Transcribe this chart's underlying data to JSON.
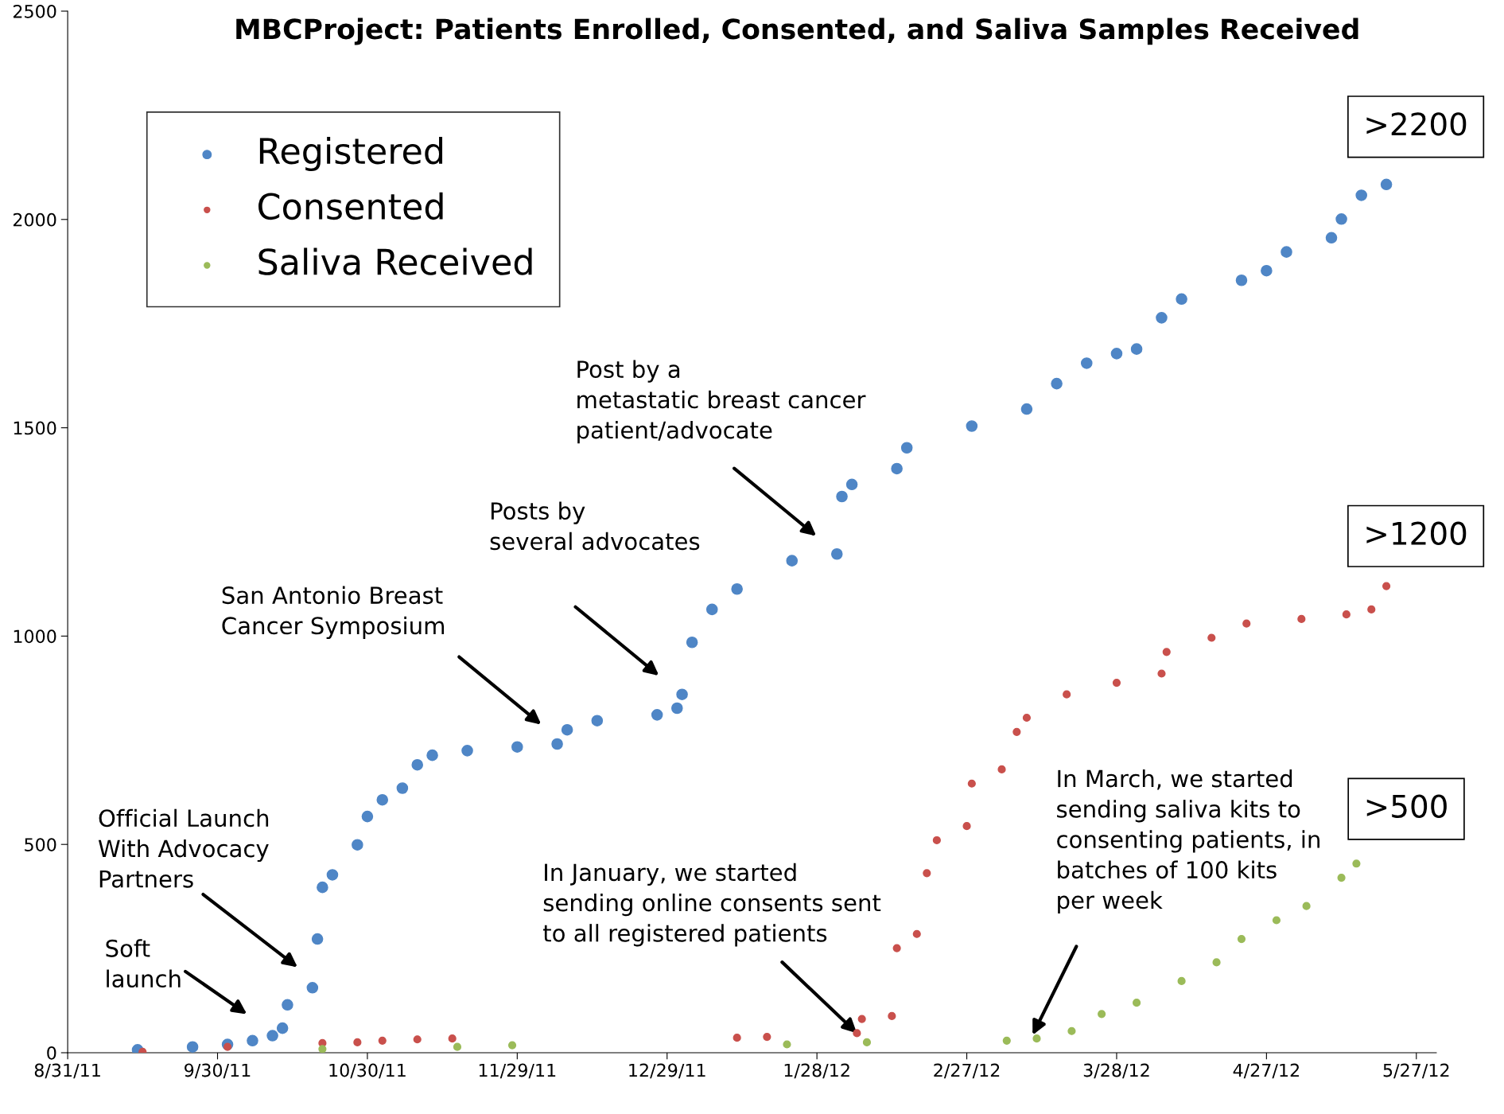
{
  "chart_data": {
    "type": "scatter",
    "title": "MBCProject: Patients Enrolled, Consented, and Saliva Samples Received",
    "xlim": [
      "2011-08-31",
      "2012-05-31"
    ],
    "xticks": [
      {
        "value": "2011-08-31",
        "label": "8/31/11"
      },
      {
        "value": "2011-09-30",
        "label": "9/30/11"
      },
      {
        "value": "2011-10-30",
        "label": "10/30/11"
      },
      {
        "value": "2011-11-29",
        "label": "11/29/11"
      },
      {
        "value": "2011-12-29",
        "label": "12/29/11"
      },
      {
        "value": "2012-01-28",
        "label": "1/28/12"
      },
      {
        "value": "2012-02-27",
        "label": "2/27/12"
      },
      {
        "value": "2012-03-28",
        "label": "3/28/12"
      },
      {
        "value": "2012-04-27",
        "label": "4/27/12"
      },
      {
        "value": "2012-05-27",
        "label": "5/27/12"
      }
    ],
    "ylim": [
      0,
      2500
    ],
    "yticks": [
      0,
      500,
      1000,
      1500,
      2000,
      2500
    ],
    "grid": false,
    "legend": "top left",
    "marker": "circle",
    "series": [
      {
        "name": "Registered",
        "color": "#4f86c6",
        "x": [
          "2011-09-14",
          "2011-09-25",
          "2011-10-02",
          "2011-10-07",
          "2011-10-11",
          "2011-10-13",
          "2011-10-14",
          "2011-10-19",
          "2011-10-20",
          "2011-10-21",
          "2011-10-23",
          "2011-10-28",
          "2011-10-30",
          "2011-11-02",
          "2011-11-06",
          "2011-11-09",
          "2011-11-12",
          "2011-11-19",
          "2011-11-29",
          "2011-12-07",
          "2011-12-09",
          "2011-12-15",
          "2011-12-27",
          "2011-12-31",
          "2012-01-01",
          "2012-01-03",
          "2012-01-07",
          "2012-01-12",
          "2012-01-23",
          "2012-02-01",
          "2012-02-02",
          "2012-02-04",
          "2012-02-13",
          "2012-02-15",
          "2012-02-28",
          "2012-03-10",
          "2012-03-16",
          "2012-03-22",
          "2012-03-28",
          "2012-04-01",
          "2012-04-06",
          "2012-04-10",
          "2012-04-22",
          "2012-04-27",
          "2012-05-01",
          "2012-05-10",
          "2012-05-12",
          "2012-05-16",
          "2012-05-21"
        ],
        "values": [
          7,
          14,
          20,
          29,
          41,
          59,
          115,
          156,
          273,
          397,
          427,
          499,
          567,
          607,
          635,
          691,
          714,
          725,
          734,
          741,
          775,
          797,
          811,
          827,
          860,
          985,
          1064,
          1113,
          1181,
          1197,
          1335,
          1364,
          1402,
          1452,
          1504,
          1545,
          1606,
          1655,
          1678,
          1689,
          1764,
          1809,
          1854,
          1877,
          1922,
          1956,
          2001,
          2058,
          2084
        ]
      },
      {
        "name": "Consented",
        "color": "#c9504c",
        "x": [
          "2011-09-15",
          "2011-10-02",
          "2011-10-21",
          "2011-10-28",
          "2011-11-02",
          "2011-11-09",
          "2011-11-16",
          "2012-01-12",
          "2012-01-18",
          "2012-02-05",
          "2012-02-06",
          "2012-02-12",
          "2012-02-13",
          "2012-02-17",
          "2012-02-19",
          "2012-02-21",
          "2012-02-27",
          "2012-02-28",
          "2012-03-05",
          "2012-03-08",
          "2012-03-10",
          "2012-03-18",
          "2012-03-28",
          "2012-04-06",
          "2012-04-07",
          "2012-04-16",
          "2012-04-23",
          "2012-05-04",
          "2012-05-13",
          "2012-05-18",
          "2012-05-21"
        ],
        "values": [
          2,
          14,
          23,
          25,
          29,
          32,
          34,
          36,
          38,
          47,
          81,
          88,
          251,
          285,
          431,
          510,
          544,
          646,
          680,
          770,
          804,
          860,
          888,
          910,
          962,
          996,
          1030,
          1041,
          1052,
          1064,
          1120
        ]
      },
      {
        "name": "Saliva Received",
        "color": "#9bbb59",
        "x": [
          "2011-10-21",
          "2011-11-17",
          "2011-11-28",
          "2012-01-22",
          "2012-02-07",
          "2012-03-06",
          "2012-03-12",
          "2012-03-19",
          "2012-03-25",
          "2012-04-01",
          "2012-04-10",
          "2012-04-17",
          "2012-04-22",
          "2012-04-29",
          "2012-05-05",
          "2012-05-12",
          "2012-05-15"
        ],
        "values": [
          9,
          14,
          18,
          20,
          25,
          29,
          34,
          52,
          93,
          120,
          172,
          217,
          273,
          318,
          352,
          420,
          454
        ]
      }
    ],
    "annotations": [
      "Soft\nlaunch",
      "Official Launch\nWith Advocacy\nPartners",
      "San Antonio Breast\nCancer Symposium",
      "Posts by\nseveral advocates",
      "Post by a\nmetastatic breast cancer\npatient/advocate",
      {
        "text": "In January, we started\nsending online consents sent\nto all registered patients",
        "x": "2012-02-05",
        "y": 47
      },
      "In March, we started\nsending saliva kits to\nconsenting patients, in\nbatches of 100 kits\nper week",
      ">2200",
      ">1200",
      ">500"
    ]
  }
}
